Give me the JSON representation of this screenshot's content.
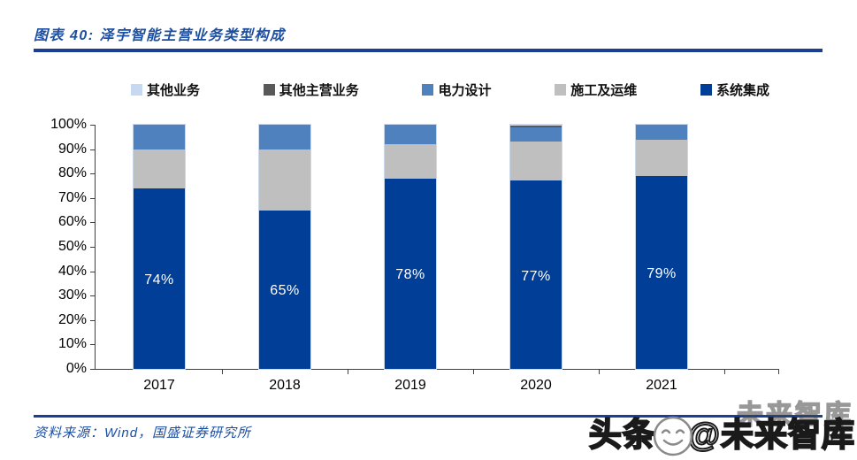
{
  "figure": {
    "title": "图表 40: 泽宇智能主营业务类型构成",
    "source_note": "资料来源：Wind，国盛证券研究所"
  },
  "watermark": {
    "faint_text": "未来智库",
    "prefix": "头条",
    "suffix": "@未来智库",
    "icon": "smiley-face-icon"
  },
  "colors": {
    "accent_blue": "#1D4FA1",
    "rule_blue": "#1B3F94",
    "axis_gray": "#404040",
    "bar_dark_blue": "#003E97",
    "bar_medium_blue": "#4E81BD",
    "bar_light_gray": "#BFBFBF",
    "bar_dark_gray": "#595959",
    "bar_light_blue": "#C7D9F1"
  },
  "chart_data": {
    "type": "bar",
    "stacked": true,
    "title": "泽宇智能主营业务类型构成",
    "unit": "%",
    "ylim": [
      0,
      100
    ],
    "grid": false,
    "legend_position": "top",
    "categories": [
      "2017",
      "2018",
      "2019",
      "2020",
      "2021"
    ],
    "y_tick_labels": [
      "100%",
      "90%",
      "80%",
      "70%",
      "60%",
      "50%",
      "40%",
      "30%",
      "20%",
      "10%",
      "0%"
    ],
    "legend": [
      {
        "label": "其他业务",
        "color": "#C7D9F1"
      },
      {
        "label": "其他主营业务",
        "color": "#595959"
      },
      {
        "label": "电力设计",
        "color": "#4E81BD"
      },
      {
        "label": "施工及运维",
        "color": "#BFBFBF"
      },
      {
        "label": "系统集成",
        "color": "#003E97"
      }
    ],
    "series": [
      {
        "name": "系统集成",
        "color": "#003E97",
        "values": [
          74,
          65,
          78,
          77,
          79
        ],
        "data_labels": [
          "74%",
          "65%",
          "78%",
          "77%",
          "79%"
        ]
      },
      {
        "name": "施工及运维",
        "color": "#BFBFBF",
        "values": [
          16,
          25,
          14,
          16,
          15
        ]
      },
      {
        "name": "电力设计",
        "color": "#4E81BD",
        "values": [
          10,
          10,
          8,
          6,
          6
        ]
      },
      {
        "name": "其他主营业务",
        "color": "#595959",
        "values": [
          0,
          0,
          0,
          0.5,
          0
        ]
      },
      {
        "name": "其他业务",
        "color": "#C7D9F1",
        "values": [
          0,
          0,
          0,
          0.5,
          0
        ]
      }
    ]
  }
}
